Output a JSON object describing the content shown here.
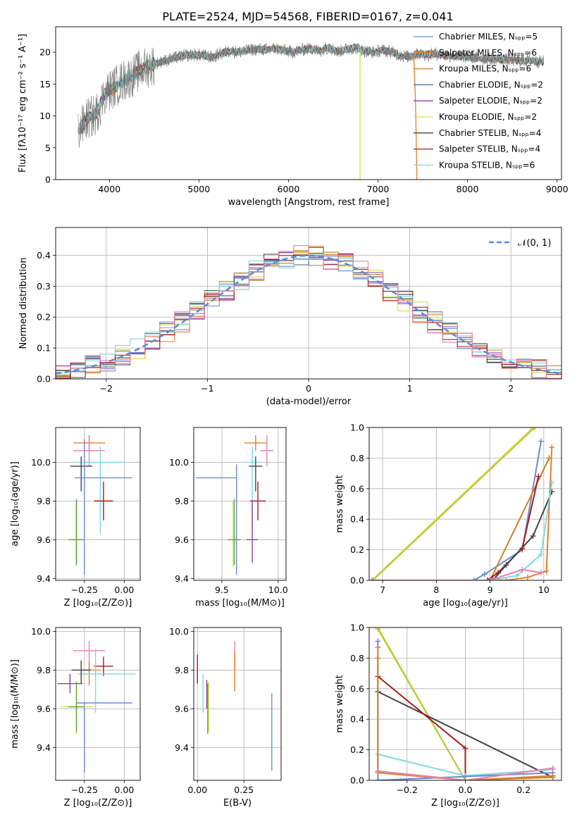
{
  "figure": {
    "title": "PLATE=2524, MJD=54568, FIBERID=0167, z=0.041"
  },
  "chart_data": [
    {
      "id": "spectrum",
      "type": "line",
      "title": "PLATE=2524, MJD=54568, FIBERID=0167, z=0.041",
      "xlabel": "wavelength [Angstrom, rest frame]",
      "ylabel": "Flux [fλ10⁻¹⁷ erg cm⁻² s⁻¹ A⁻¹]",
      "xlim": [
        3400,
        9050
      ],
      "ylim": [
        0,
        24
      ],
      "xticks": [
        4000,
        5000,
        6000,
        7000,
        8000,
        9000
      ],
      "yticks": [
        0,
        5,
        10,
        15,
        20
      ],
      "legend_position": "upper right",
      "legend": [
        {
          "label": "Chabrier MILES, Nₛₚₚ=5",
          "color": "#6b8bd6"
        },
        {
          "label": "Salpeter MILES, Nₛₚₚ=6",
          "color": "#e87d2a"
        },
        {
          "label": "Kroupa MILES, Nₛₚₚ=6",
          "color": "#c8822a"
        },
        {
          "label": "Chabrier ELODIE, Nₛₚₚ=2",
          "color": "#3f6b86"
        },
        {
          "label": "Salpeter ELODIE, Nₛₚₚ=2",
          "color": "#8a3fb0"
        },
        {
          "label": "Kroupa ELODIE, Nₛₚₚ=2",
          "color": "#d9e04a"
        },
        {
          "label": "Chabrier STELIB, Nₛₚₚ=4",
          "color": "#444444"
        },
        {
          "label": "Salpeter STELIB, Nₛₚₚ=4",
          "color": "#aa1a1a"
        },
        {
          "label": "Kroupa STELIB, Nₛₚₚ=6",
          "color": "#7fd8e0"
        }
      ],
      "data_series": {
        "name": "data",
        "x": [
          3650,
          3750,
          3850,
          3950,
          4050,
          4150,
          4250,
          4350,
          4450,
          4550,
          4650,
          4750,
          4850,
          4950,
          5050,
          5150,
          5250,
          5350,
          5450,
          5550,
          5650,
          5750,
          5850,
          5950,
          6050,
          6150,
          6250,
          6350,
          6450,
          6550,
          6650,
          6750,
          6850,
          6950,
          7050,
          7150,
          7250,
          7350,
          7450,
          7550,
          7650,
          7750,
          7850,
          7950,
          8050,
          8150,
          8250,
          8350,
          8450,
          8550,
          8650,
          8750,
          8850
        ],
        "y": [
          7.5,
          9.5,
          10.2,
          13.5,
          14.5,
          15.5,
          16.2,
          17.2,
          17.8,
          18.4,
          18.8,
          19.2,
          19.5,
          19.6,
          19.5,
          19.2,
          19.8,
          20.2,
          20.0,
          20.3,
          20.5,
          20.4,
          20.6,
          20.3,
          20.0,
          20.4,
          20.6,
          20.2,
          20.8,
          20.1,
          20.5,
          20.7,
          20.2,
          20.0,
          20.3,
          20.1,
          19.5,
          19.3,
          19.8,
          19.6,
          19.8,
          19.5,
          19.4,
          19.3,
          19.2,
          19.0,
          19.0,
          18.9,
          18.8,
          18.7,
          18.7,
          18.6,
          18.5
        ]
      },
      "dropouts": [
        {
          "series": "Kroupa ELODIE, Nₛₚₚ=2",
          "x": 6800
        },
        {
          "series": "Salpeter MILES, Nₛₚₚ=6",
          "x": 7420
        }
      ]
    },
    {
      "id": "residuals",
      "type": "step",
      "xlabel": "(data-model)/error",
      "ylabel": "Normed distribution",
      "xlim": [
        -2.5,
        2.5
      ],
      "ylim": [
        0,
        0.49
      ],
      "xticks": [
        -2,
        -1,
        0,
        1,
        2
      ],
      "yticks": [
        0.0,
        0.1,
        0.2,
        0.3,
        0.4
      ],
      "grid": true,
      "legend_position": "upper right",
      "reference_curve": {
        "label": "𝒩(0, 1)",
        "color": "#5b8be0",
        "style": "dashed",
        "mean": 0,
        "sigma": 1
      },
      "series_colors": [
        "#6b8bd6",
        "#e87d2a",
        "#c8822a",
        "#3f6b86",
        "#8a3fb0",
        "#d9e04a",
        "#444444",
        "#aa1a1a",
        "#7fd8e0",
        "#e87fb0"
      ]
    },
    {
      "id": "age_vs_Z",
      "type": "errorbar",
      "xlabel": "Z [log₁₀(Z/Z⊙)]",
      "ylabel": "age  [log₁₀(age/yr)]",
      "xlim": [
        -0.43,
        0.1
      ],
      "ylim": [
        9.39,
        10.18
      ],
      "xticks": [
        -0.25,
        0.0
      ],
      "yticks": [
        9.4,
        9.6,
        9.8,
        10.0
      ],
      "grid": true,
      "points": [
        {
          "color": "#e87d2a",
          "x": -0.22,
          "xerr": [
            0.1,
            0.1
          ],
          "y": 10.1,
          "yerr": [
            0.04,
            0.04
          ]
        },
        {
          "color": "#e87fb0",
          "x": -0.22,
          "xerr": [
            0.1,
            0.1
          ],
          "y": 10.06,
          "yerr": [
            0.08,
            0.08
          ]
        },
        {
          "color": "#7fd8e0",
          "x": -0.15,
          "xerr": [
            0.15,
            0.15
          ],
          "y": 10.0,
          "yerr": [
            0.37,
            0.08
          ]
        },
        {
          "color": "#444444",
          "x": -0.27,
          "xerr": [
            0.07,
            0.07
          ],
          "y": 9.98,
          "yerr": [
            0.13,
            0.05
          ]
        },
        {
          "color": "#6b8bd6",
          "x": -0.25,
          "xerr": [
            0.06,
            0.3
          ],
          "y": 9.92,
          "yerr": [
            0.5,
            0.2
          ]
        },
        {
          "color": "#aa1a1a",
          "x": -0.13,
          "xerr": [
            0.06,
            0.06
          ],
          "y": 9.8,
          "yerr": [
            0.1,
            0.1
          ]
        },
        {
          "color": "#8a3fb0",
          "x": -0.3,
          "xerr": [
            0.03,
            0.03
          ],
          "y": 9.6,
          "yerr": [
            0.12,
            0.2
          ]
        },
        {
          "color": "#d9e04a",
          "x": -0.3,
          "xerr": [
            0.1,
            0.1
          ],
          "y": 9.6,
          "yerr": [
            0.14,
            0.2
          ]
        },
        {
          "color": "#5fa83a",
          "x": -0.3,
          "xerr": [
            0.05,
            0.05
          ],
          "y": 9.6,
          "yerr": [
            0.13,
            0.21
          ]
        }
      ]
    },
    {
      "id": "age_vs_mass",
      "type": "errorbar",
      "xlabel": "mass [log₁₀(M/M⊙)]",
      "ylabel": "",
      "xlim": [
        9.25,
        10.07
      ],
      "ylim": [
        9.39,
        10.18
      ],
      "xticks": [
        9.5,
        10.0
      ],
      "yticks": [
        9.4,
        9.6,
        9.8,
        10.0
      ],
      "grid": true,
      "points": [
        {
          "color": "#e87d2a",
          "x": 9.8,
          "xerr": [
            0.1,
            0.1
          ],
          "y": 10.1,
          "yerr": [
            0.04,
            0.04
          ]
        },
        {
          "color": "#e87fb0",
          "x": 9.9,
          "xerr": [
            0.06,
            0.06
          ],
          "y": 10.06,
          "yerr": [
            0.08,
            0.08
          ]
        },
        {
          "color": "#7fd8e0",
          "x": 9.77,
          "xerr": [
            0.06,
            0.06
          ],
          "y": 10.0,
          "yerr": [
            0.37,
            0.08
          ]
        },
        {
          "color": "#444444",
          "x": 9.8,
          "xerr": [
            0.06,
            0.06
          ],
          "y": 9.98,
          "yerr": [
            0.13,
            0.05
          ]
        },
        {
          "color": "#6b8bd6",
          "x": 9.63,
          "xerr": [
            0.36,
            0.0
          ],
          "y": 9.92,
          "yerr": [
            0.5,
            0.07
          ]
        },
        {
          "color": "#aa1a1a",
          "x": 9.82,
          "xerr": [
            0.07,
            0.07
          ],
          "y": 9.8,
          "yerr": [
            0.1,
            0.1
          ]
        },
        {
          "color": "#8a3fb0",
          "x": 9.77,
          "xerr": [
            0.05,
            0.05
          ],
          "y": 9.6,
          "yerr": [
            0.12,
            0.2
          ]
        },
        {
          "color": "#d9e04a",
          "x": 9.6,
          "xerr": [
            0.02,
            0.02
          ],
          "y": 9.6,
          "yerr": [
            0.14,
            0.2
          ]
        },
        {
          "color": "#5fa83a",
          "x": 9.61,
          "xerr": [
            0.06,
            0.06
          ],
          "y": 9.6,
          "yerr": [
            0.13,
            0.21
          ]
        }
      ]
    },
    {
      "id": "cumulative_weight_vs_age",
      "type": "line",
      "xlabel": "age  [log₁₀(age/yr)]",
      "ylabel": "mass weight",
      "xlim": [
        6.75,
        10.33
      ],
      "ylim": [
        0,
        1.0
      ],
      "xticks": [
        7,
        8,
        9,
        10
      ],
      "yticks": [
        0.0,
        0.2,
        0.4,
        0.6,
        0.8,
        1.0
      ],
      "grid": true,
      "series": [
        {
          "color": "#d9e04a",
          "x": [
            6.8,
            9.8
          ],
          "y": [
            0.0,
            1.0
          ]
        },
        {
          "color": "#b8c83a",
          "x": [
            6.82,
            9.83
          ],
          "y": [
            0.0,
            1.0
          ]
        },
        {
          "color": "#6b8bd6",
          "x": [
            6.8,
            8.7,
            8.9,
            9.6,
            9.95
          ],
          "y": [
            0.0,
            0.0,
            0.04,
            0.2,
            0.91
          ]
        },
        {
          "color": "#e87d2a",
          "x": [
            6.8,
            9.3,
            9.7,
            10.05,
            10.15
          ],
          "y": [
            0.0,
            0.0,
            0.02,
            0.06,
            0.87
          ]
        },
        {
          "color": "#c8822a",
          "x": [
            6.8,
            9.0,
            10.1
          ],
          "y": [
            0.0,
            0.0,
            0.8
          ]
        },
        {
          "color": "#aa1a1a",
          "x": [
            6.8,
            8.95,
            9.15,
            9.6,
            9.9
          ],
          "y": [
            0.0,
            0.0,
            0.05,
            0.21,
            0.68
          ]
        },
        {
          "color": "#444444",
          "x": [
            6.8,
            9.05,
            9.3,
            9.8,
            10.15
          ],
          "y": [
            0.0,
            0.0,
            0.1,
            0.29,
            0.58
          ]
        },
        {
          "color": "#7fd8e0",
          "x": [
            6.8,
            9.0,
            9.5,
            9.95,
            10.15
          ],
          "y": [
            0.0,
            0.0,
            0.03,
            0.17,
            0.64
          ]
        },
        {
          "color": "#e87fb0",
          "x": [
            6.8,
            9.0,
            9.6,
            9.95
          ],
          "y": [
            0.0,
            0.0,
            0.07,
            0.05
          ]
        }
      ]
    },
    {
      "id": "mass_vs_Z",
      "type": "errorbar",
      "xlabel": "Z [log₁₀(Z/Z⊙)]",
      "ylabel": "mass [log₁₀(M/M⊙)]",
      "xlim": [
        -0.43,
        0.1
      ],
      "ylim": [
        9.23,
        10.02
      ],
      "xticks": [
        -0.25,
        0.0
      ],
      "yticks": [
        9.4,
        9.6,
        9.8,
        10.0
      ],
      "grid": true,
      "points": [
        {
          "color": "#e87fb0",
          "x": -0.22,
          "xerr": [
            0.1,
            0.1
          ],
          "y": 9.9,
          "yerr": [
            0.1,
            0.05
          ]
        },
        {
          "color": "#e87d2a",
          "x": -0.22,
          "xerr": [
            0.07,
            0.07
          ],
          "y": 9.8,
          "yerr": [
            0.08,
            0.04
          ]
        },
        {
          "color": "#aa1a1a",
          "x": -0.13,
          "xerr": [
            0.06,
            0.06
          ],
          "y": 9.82,
          "yerr": [
            0.05,
            0.05
          ]
        },
        {
          "color": "#7fd8e0",
          "x": -0.18,
          "xerr": [
            0.11,
            0.25
          ],
          "y": 9.78,
          "yerr": [
            0.2,
            0.13
          ]
        },
        {
          "color": "#444444",
          "x": -0.27,
          "xerr": [
            0.06,
            0.06
          ],
          "y": 9.8,
          "yerr": [
            0.07,
            0.05
          ]
        },
        {
          "color": "#8a3fb0",
          "x": -0.34,
          "xerr": [
            0.08,
            0.08
          ],
          "y": 9.73,
          "yerr": [
            0.05,
            0.05
          ]
        },
        {
          "color": "#6b8bd6",
          "x": -0.25,
          "xerr": [
            0.05,
            0.3
          ],
          "y": 9.63,
          "yerr": [
            0.36,
            0.0
          ]
        },
        {
          "color": "#d9e04a",
          "x": -0.3,
          "xerr": [
            0.1,
            0.1
          ],
          "y": 9.61,
          "yerr": [
            0.14,
            0.13
          ]
        },
        {
          "color": "#5fa83a",
          "x": -0.3,
          "xerr": [
            0.05,
            0.05
          ],
          "y": 9.61,
          "yerr": [
            0.13,
            0.13
          ]
        }
      ]
    },
    {
      "id": "mass_vs_EBV",
      "type": "errorbar",
      "xlabel": "E(B-V)",
      "ylabel": "",
      "xlim": [
        -0.02,
        0.45
      ],
      "ylim": [
        9.23,
        10.02
      ],
      "xticks": [
        0.0,
        0.25
      ],
      "yticks": [
        9.4,
        9.6,
        9.8,
        10.0
      ],
      "grid": true,
      "points": [
        {
          "color": "#e87fb0",
          "x": 0.2,
          "y": 9.9,
          "yerr": [
            0.1,
            0.05
          ]
        },
        {
          "color": "#e87d2a",
          "x": 0.2,
          "y": 9.8,
          "yerr": [
            0.11,
            0.1
          ]
        },
        {
          "color": "#aa1a1a",
          "x": 0.0,
          "y": 9.8,
          "yerr": [
            0.07,
            0.08
          ]
        },
        {
          "color": "#7fd8e0",
          "x": 0.03,
          "y": 9.73,
          "yerr": [
            0.15,
            0.05
          ]
        },
        {
          "color": "#8a3fb0",
          "x": 0.05,
          "y": 9.68,
          "yerr": [
            0.08,
            0.07
          ]
        },
        {
          "color": "#d9e04a",
          "x": 0.06,
          "y": 9.61,
          "yerr": [
            0.13,
            0.13
          ]
        },
        {
          "color": "#5fa83a",
          "x": 0.055,
          "y": 9.6,
          "yerr": [
            0.13,
            0.13
          ]
        },
        {
          "color": "#6b8bd6",
          "x": 0.4,
          "y": 9.48,
          "yerr": [
            0.2,
            0.2
          ]
        }
      ]
    },
    {
      "id": "cumulative_weight_vs_Z",
      "type": "line",
      "xlabel": "Z [log₁₀(Z/Z⊙)]",
      "ylabel": "mass weight",
      "xlim": [
        -0.33,
        0.33
      ],
      "ylim": [
        0,
        1.0
      ],
      "xticks": [
        -0.2,
        0.0,
        0.2
      ],
      "yticks": [
        0.0,
        0.2,
        0.4,
        0.6,
        0.8,
        1.0
      ],
      "grid": true,
      "series": [
        {
          "color": "#d9e04a",
          "x": [
            -0.3,
            0.0
          ],
          "y": [
            1.0,
            0.0
          ]
        },
        {
          "color": "#b8c83a",
          "x": [
            -0.3,
            0.0
          ],
          "y": [
            0.99,
            0.0
          ]
        },
        {
          "color": "#444444",
          "x": [
            -0.3,
            0.3
          ],
          "y": [
            0.58,
            0.02
          ]
        },
        {
          "color": "#aa1a1a",
          "x": [
            -0.3,
            0.0,
            0.0
          ],
          "y": [
            0.68,
            0.21,
            0.0
          ]
        },
        {
          "color": "#7fd8e0",
          "x": [
            -0.3,
            0.0,
            0.3
          ],
          "y": [
            0.17,
            0.03,
            0.07
          ]
        },
        {
          "color": "#6b8bd6",
          "x": [
            -0.3,
            -0.3,
            0.3
          ],
          "y": [
            0.91,
            0.0,
            0.05
          ]
        },
        {
          "color": "#e87d2a",
          "x": [
            -0.3,
            -0.3,
            0.0,
            0.3
          ],
          "y": [
            0.87,
            0.05,
            0.0,
            0.03
          ]
        },
        {
          "color": "#c8822a",
          "x": [
            -0.3,
            -0.3,
            0.0,
            0.3
          ],
          "y": [
            0.8,
            0.06,
            0.0,
            0.02
          ]
        },
        {
          "color": "#e87fb0",
          "x": [
            -0.3,
            0.0,
            0.3
          ],
          "y": [
            0.06,
            0.0,
            0.08
          ]
        }
      ]
    }
  ]
}
